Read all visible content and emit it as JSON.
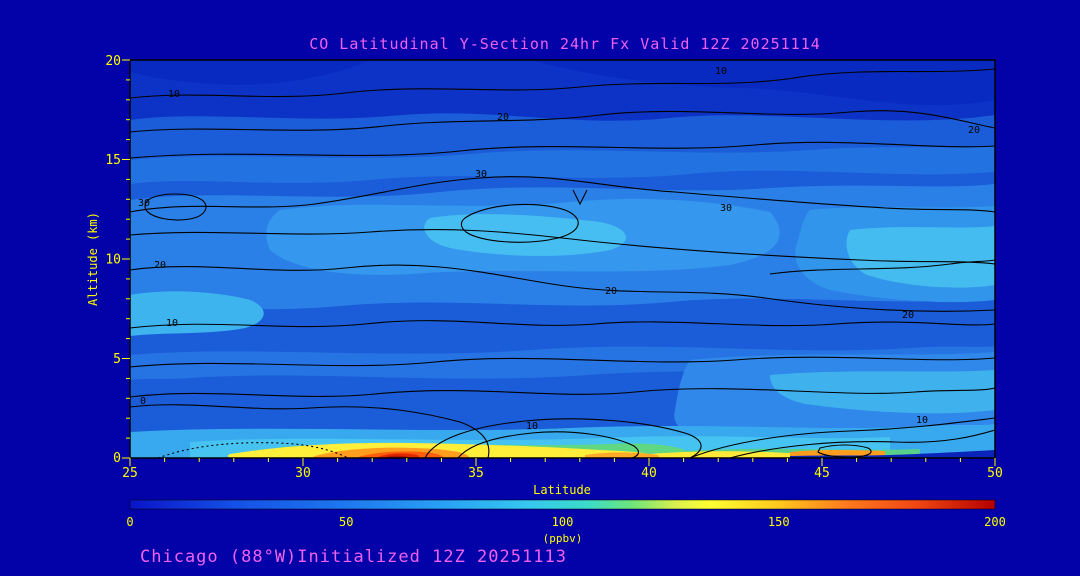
{
  "title": "CO Latitudinal Y-Section 24hr  Fx Valid 12Z 20251114",
  "footer": "Chicago (88°W)Initialized 12Z 20251113",
  "axes": {
    "x": {
      "label": "Latitude",
      "ticks": [
        "25",
        "30",
        "35",
        "40",
        "45",
        "50"
      ]
    },
    "y": {
      "label": "Altitude (km)",
      "ticks": [
        "20",
        "15",
        "10",
        "5",
        "0"
      ]
    }
  },
  "colorbar": {
    "label": "(ppbv)",
    "ticks": [
      "0",
      "50",
      "100",
      "150",
      "200"
    ]
  },
  "contours": {
    "labels": [
      "10",
      "20",
      "10",
      "20",
      "30",
      "30",
      "30",
      "20",
      "20",
      "20",
      "10",
      "0",
      "10",
      "10"
    ]
  },
  "colors": {
    "background": "#0202a8",
    "title_text": "#f161f1",
    "axis_text": "#ffff00",
    "contour_lines": "#000000",
    "palette_low_to_high": [
      "#0a14c8",
      "#1450e6",
      "#1e78f0",
      "#28a0f5",
      "#35c8f0",
      "#3cdcc8",
      "#6ce67a",
      "#ffff32",
      "#ffc81e",
      "#ff781e",
      "#b40000"
    ]
  },
  "chart_data": {
    "type": "heatmap",
    "title": "CO Latitudinal Y-Section 24hr  Fx Valid 12Z 20251114",
    "xlabel": "Latitude",
    "ylabel": "Altitude (km)",
    "x_range": [
      25,
      50
    ],
    "y_range": [
      0,
      20
    ],
    "x_ticks": [
      25,
      30,
      35,
      40,
      45,
      50
    ],
    "y_ticks": [
      0,
      5,
      10,
      15,
      20
    ],
    "unit": "ppbv",
    "colorbar_range": [
      0,
      200
    ],
    "colorbar_ticks": [
      0,
      50,
      100,
      150,
      200
    ],
    "contour_interval": 10,
    "labeled_contour_levels": [
      0,
      10,
      20,
      30
    ],
    "grid": {
      "latitudes": [
        25,
        30,
        35,
        40,
        45,
        50
      ],
      "altitudes_km": [
        0,
        2,
        5,
        10,
        13,
        15,
        18,
        20
      ],
      "values_ppbv": [
        [
          20,
          160,
          130,
          120,
          60,
          10
        ],
        [
          15,
          25,
          30,
          30,
          25,
          20
        ],
        [
          12,
          18,
          22,
          22,
          20,
          18
        ],
        [
          22,
          26,
          28,
          26,
          24,
          22
        ],
        [
          30,
          31,
          32,
          31,
          28,
          25
        ],
        [
          24,
          26,
          28,
          26,
          23,
          21
        ],
        [
          14,
          17,
          20,
          18,
          15,
          13
        ],
        [
          9,
          11,
          13,
          12,
          10,
          9
        ]
      ]
    },
    "hotspot": {
      "latitude": 32.5,
      "altitude_km": 0,
      "value_ppbv": 200
    },
    "legend_position": "bottom",
    "grid_lines": false
  }
}
